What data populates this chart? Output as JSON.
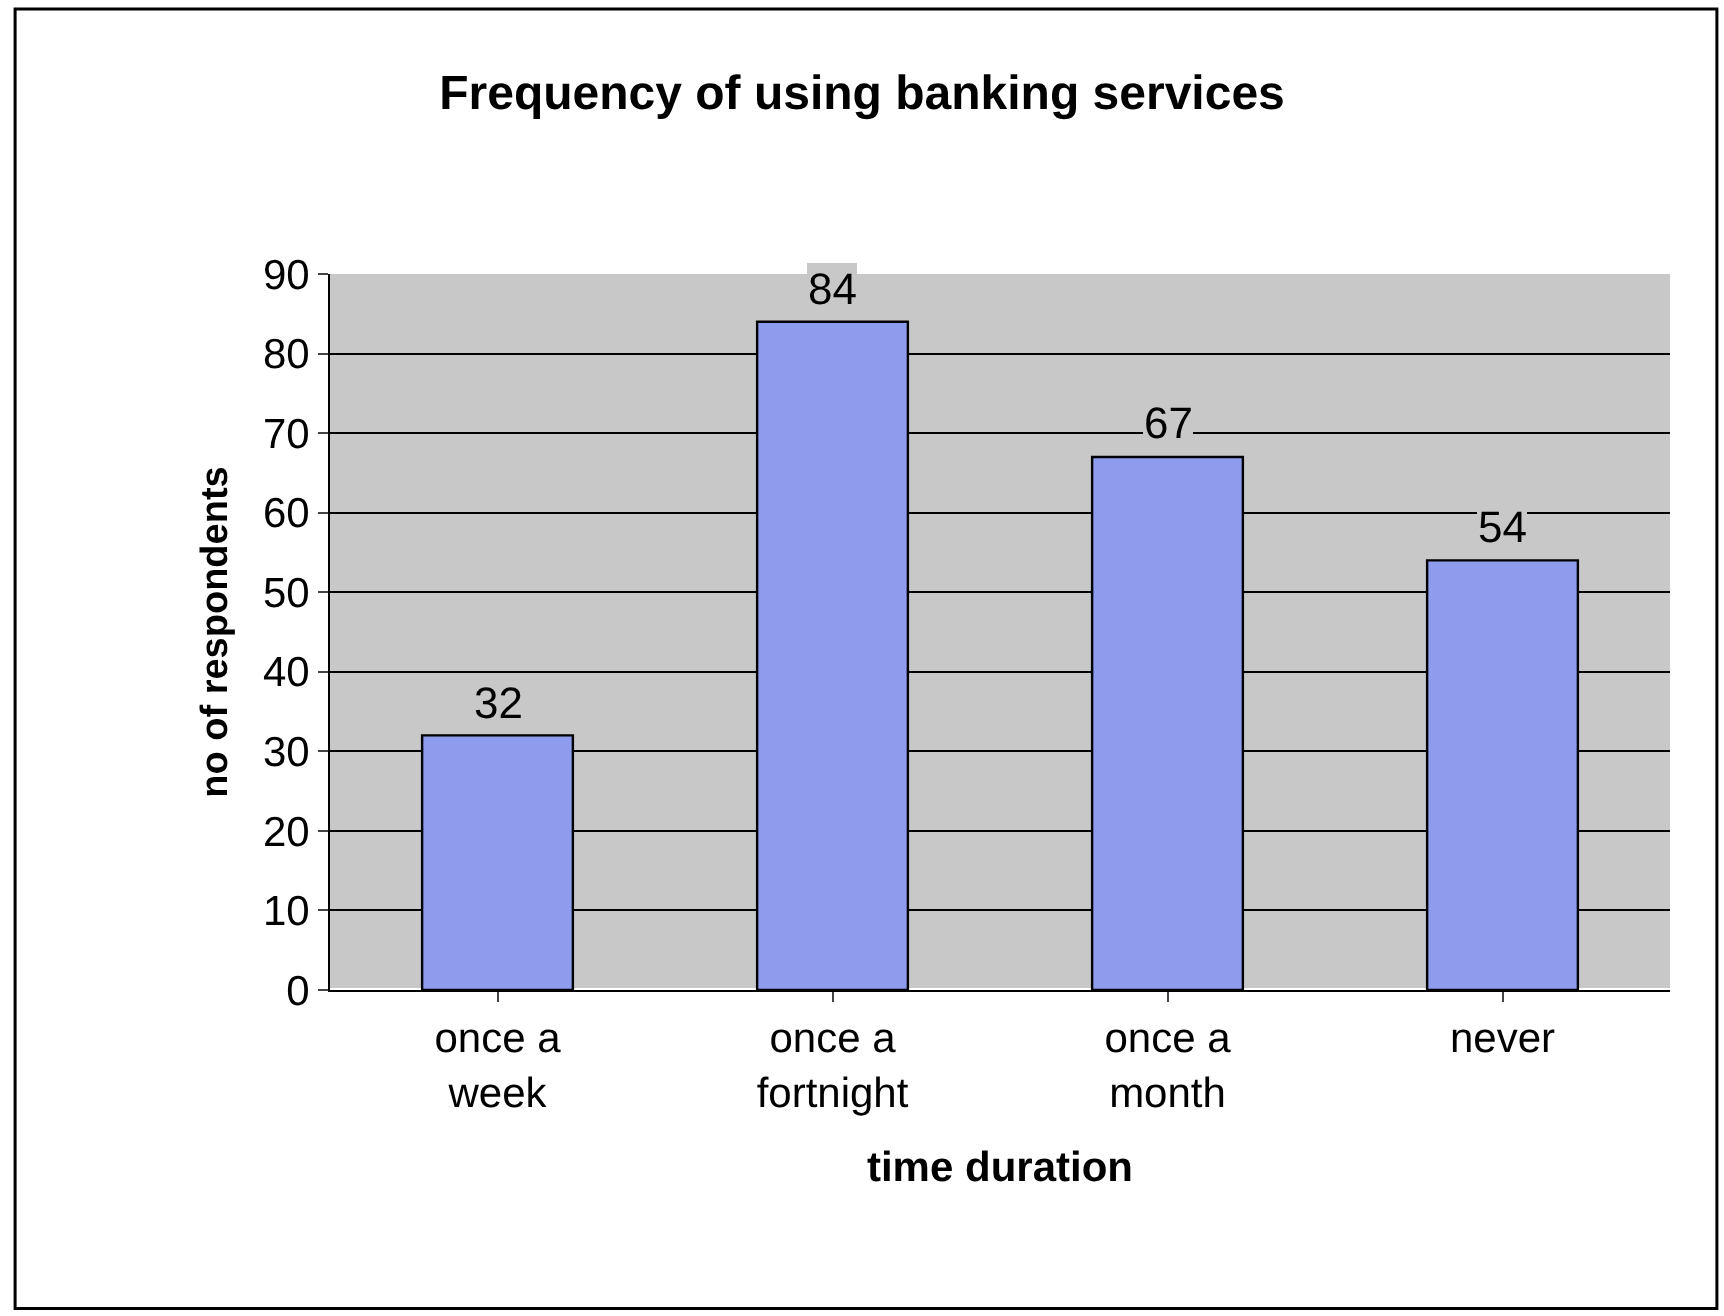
{
  "chart_data": {
    "type": "bar",
    "title": "Frequency of using banking services",
    "xlabel": "time duration",
    "ylabel": "no of respondents",
    "categories": [
      "once a week",
      "once a fortnight",
      "once a month",
      "never"
    ],
    "values": [
      32,
      84,
      67,
      54
    ],
    "color": "#8d9cec",
    "ylim": [
      0,
      90
    ],
    "yticks": [
      0,
      10,
      20,
      30,
      40,
      50,
      60,
      70,
      80,
      90
    ],
    "grid": "y",
    "data_labels": true,
    "legend": false
  }
}
